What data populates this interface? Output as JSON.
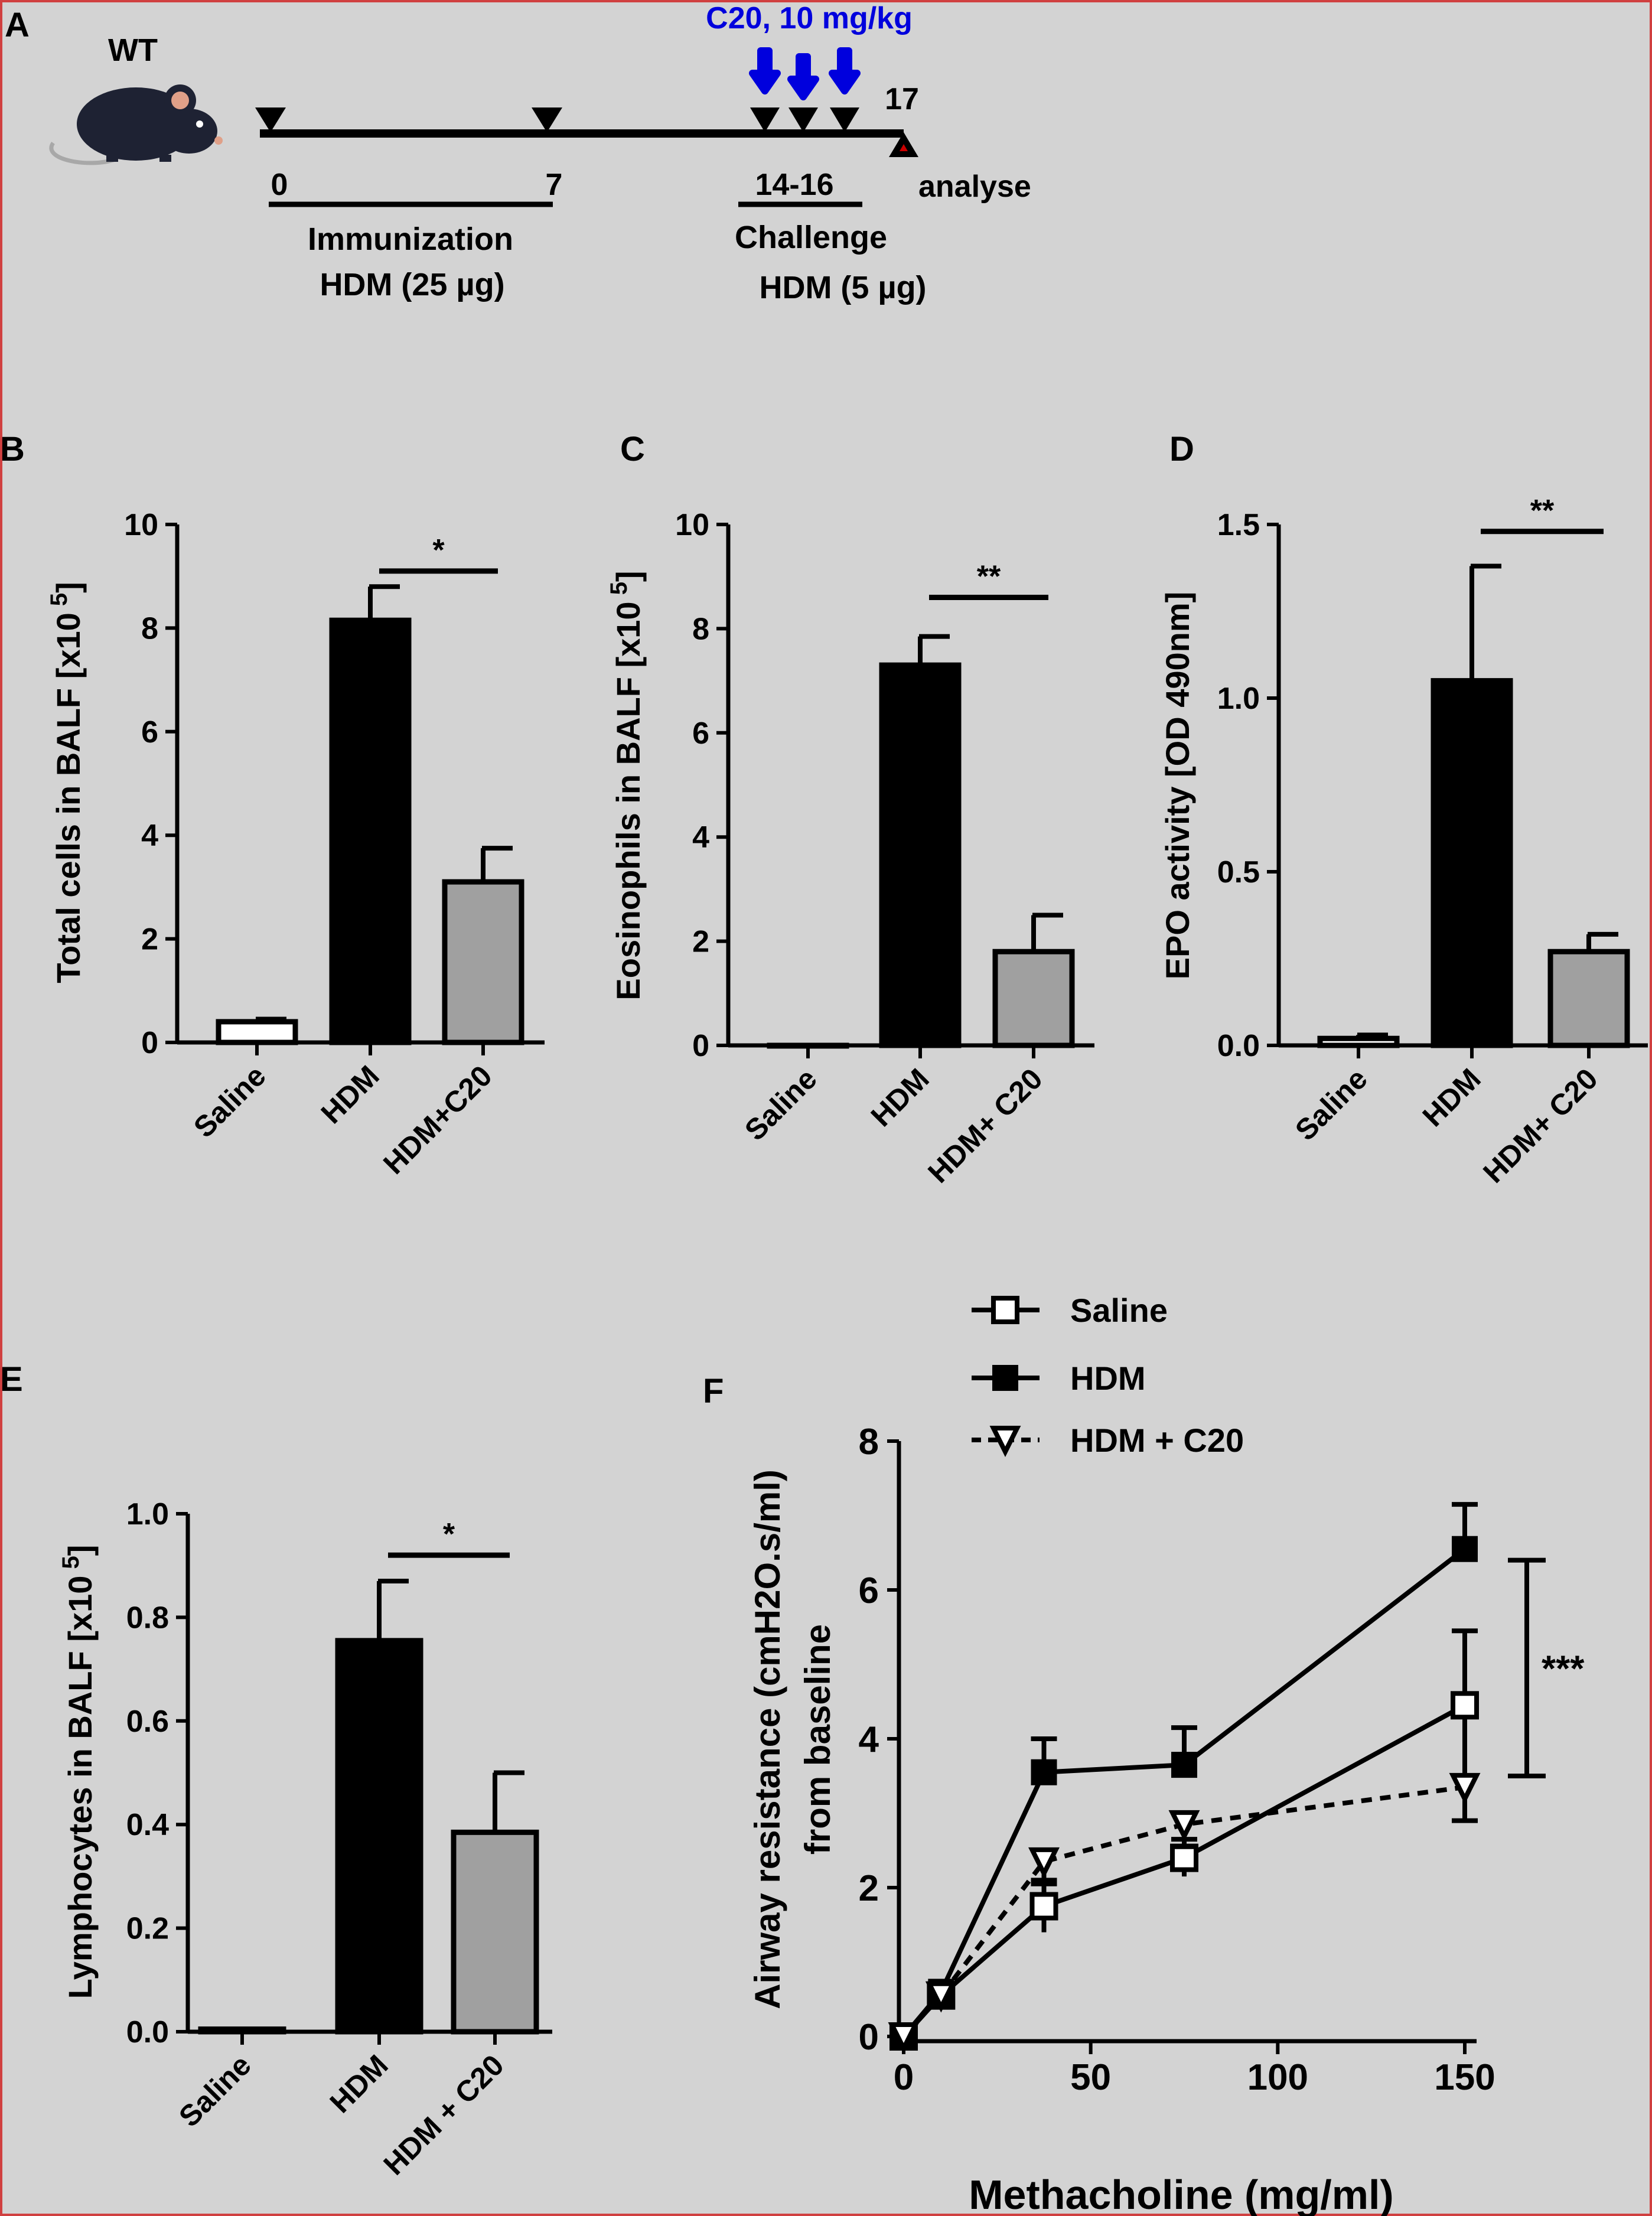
{
  "panel_letters": {
    "a": "A",
    "b": "B",
    "c": "C",
    "d": "D",
    "e": "E",
    "f": "F"
  },
  "timeline": {
    "mouse_label": "WT",
    "treatment_label": "C20, 10 mg/kg",
    "day_labels": [
      "0",
      "7",
      "14-16",
      "17"
    ],
    "analyse_label": "analyse",
    "immunization_label": "Immunization",
    "immunization_dose": "HDM (25 µg)",
    "challenge_label": "Challenge",
    "challenge_dose": "HDM (5 µg)",
    "colors": {
      "treatment": "#0000dd",
      "analyse_marker": "#cc0000"
    }
  },
  "chart_data": [
    {
      "id": "B",
      "type": "bar",
      "ylabel": "Total cells in BALF [x10",
      "ylabel_exp": "5",
      "ylabel_end": "]",
      "categories": [
        "Saline",
        "HDM",
        "HDM+C20"
      ],
      "values": [
        0.4,
        8.15,
        3.1
      ],
      "errors": [
        0.05,
        0.65,
        0.65
      ],
      "colors": [
        "#ffffff",
        "#000000",
        "#a0a0a0"
      ],
      "yticks": [
        "0",
        "2",
        "4",
        "6",
        "8",
        "10"
      ],
      "ylim": [
        0,
        10
      ],
      "significance": {
        "label": "*",
        "from": 1,
        "to": 2,
        "y": 9.1
      }
    },
    {
      "id": "C",
      "type": "bar",
      "ylabel": "Eosinophils in BALF [x10",
      "ylabel_exp": "5",
      "ylabel_end": "]",
      "categories": [
        "Saline",
        "HDM",
        "HDM+ C20"
      ],
      "values": [
        0.0,
        7.3,
        1.8
      ],
      "errors": [
        0.0,
        0.55,
        0.7
      ],
      "colors": [
        "#ffffff",
        "#000000",
        "#a0a0a0"
      ],
      "yticks": [
        "0",
        "2",
        "4",
        "6",
        "8",
        "10"
      ],
      "ylim": [
        0,
        10
      ],
      "significance": {
        "label": "**",
        "from": 1,
        "to": 2,
        "y": 8.6
      }
    },
    {
      "id": "D",
      "type": "bar",
      "ylabel": "EPO activity [OD 490nm]",
      "ylabel_exp": "",
      "ylabel_end": "",
      "categories": [
        "Saline",
        "HDM",
        "HDM+ C20"
      ],
      "values": [
        0.02,
        1.05,
        0.27
      ],
      "errors": [
        0.01,
        0.33,
        0.05
      ],
      "colors": [
        "#ffffff",
        "#000000",
        "#a0a0a0"
      ],
      "yticks": [
        "0.0",
        "0.5",
        "1.0",
        "1.5"
      ],
      "ylim": [
        0,
        1.5
      ],
      "significance": {
        "label": "**",
        "from": 1,
        "to": 2,
        "y": 1.48
      }
    },
    {
      "id": "E",
      "type": "bar",
      "ylabel": "Lymphocytes in BALF [x10",
      "ylabel_exp": "5",
      "ylabel_end": "]",
      "categories": [
        "Saline",
        "HDM",
        "HDM + C20"
      ],
      "values": [
        0.005,
        0.755,
        0.385
      ],
      "errors": [
        0.0,
        0.115,
        0.115
      ],
      "colors": [
        "#ffffff",
        "#000000",
        "#a0a0a0"
      ],
      "yticks": [
        "0.0",
        "0.2",
        "0.4",
        "0.6",
        "0.8",
        "1.0"
      ],
      "ylim": [
        0,
        1.0
      ],
      "significance": {
        "label": "*",
        "from": 1,
        "to": 2,
        "y": 0.92
      }
    },
    {
      "id": "F",
      "type": "line",
      "xlabel": "Methacholine (mg/ml)",
      "ylabel": "Airway resistance (cmH2O.s/ml)",
      "ylabel2": "from baseline",
      "x": [
        0,
        10,
        37.5,
        75,
        150
      ],
      "xticks": [
        "0",
        "50",
        "100",
        "150"
      ],
      "xtick_values": [
        0,
        50,
        100,
        150
      ],
      "yticks": [
        "0",
        "2",
        "4",
        "6",
        "8"
      ],
      "xlim": [
        0,
        150
      ],
      "ylim": [
        0,
        8
      ],
      "series": [
        {
          "name": "Saline",
          "marker": "open-square",
          "dashed": false,
          "values": [
            0,
            0.55,
            1.75,
            2.4,
            4.45
          ],
          "errors": [
            0,
            0.1,
            0.35,
            0.25,
            1.0
          ]
        },
        {
          "name": "HDM",
          "marker": "filled-square",
          "dashed": false,
          "values": [
            0,
            0.6,
            3.55,
            3.65,
            6.55
          ],
          "errors": [
            0,
            0.1,
            0.45,
            0.5,
            0.6
          ]
        },
        {
          "name": "HDM + C20",
          "marker": "open-triangle",
          "dashed": true,
          "values": [
            0,
            0.55,
            2.35,
            2.85,
            3.35
          ],
          "errors": [
            0,
            0.1,
            0.3,
            0.3,
            0.45
          ]
        }
      ],
      "significance": {
        "label": "***",
        "y_low": 3.5,
        "y_high": 6.4
      }
    }
  ]
}
